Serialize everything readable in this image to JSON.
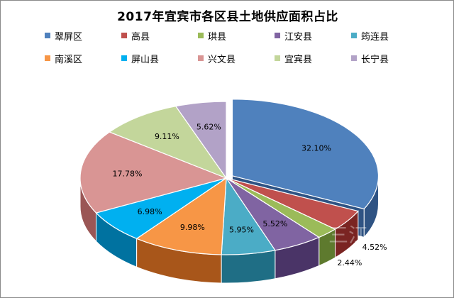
{
  "chart_data": {
    "type": "pie",
    "title": "2017年宜宾市各区县土地供应面积占比",
    "slices": [
      {
        "name": "翠屏区",
        "value": 32.1,
        "label": "32.10%",
        "color": "#4F81BD",
        "side": "#2F5383"
      },
      {
        "name": "高县",
        "value": 4.52,
        "label": "4.52%",
        "color": "#C0504D",
        "side": "#7A2422"
      },
      {
        "name": "珙县",
        "value": 2.44,
        "label": "2.44%",
        "color": "#9BBB59",
        "side": "#5E7A2E"
      },
      {
        "name": "江安县",
        "value": 5.52,
        "label": "5.52%",
        "color": "#8064A2",
        "side": "#4A3467"
      },
      {
        "name": "筠连县",
        "value": 5.95,
        "label": "5.95%",
        "color": "#4BACC6",
        "side": "#1F6E85"
      },
      {
        "name": "南溪区",
        "value": 9.98,
        "label": "9.98%",
        "color": "#F79646",
        "side": "#A8561A"
      },
      {
        "name": "屏山县",
        "value": 6.98,
        "label": "6.98%",
        "color": "#00B0F0",
        "side": "#0072A0"
      },
      {
        "name": "兴文县",
        "value": 17.78,
        "label": "17.78%",
        "color": "#D99594",
        "side": "#9A5655"
      },
      {
        "name": "宜宾县",
        "value": 9.11,
        "label": "9.11%",
        "color": "#C3D69B",
        "side": "#7F955A"
      },
      {
        "name": "长宁县",
        "value": 5.62,
        "label": "5.62%",
        "color": "#B2A2C7",
        "side": "#6F6287"
      }
    ],
    "legend_position": "top",
    "three_d": true
  },
  "watermark": "三江"
}
